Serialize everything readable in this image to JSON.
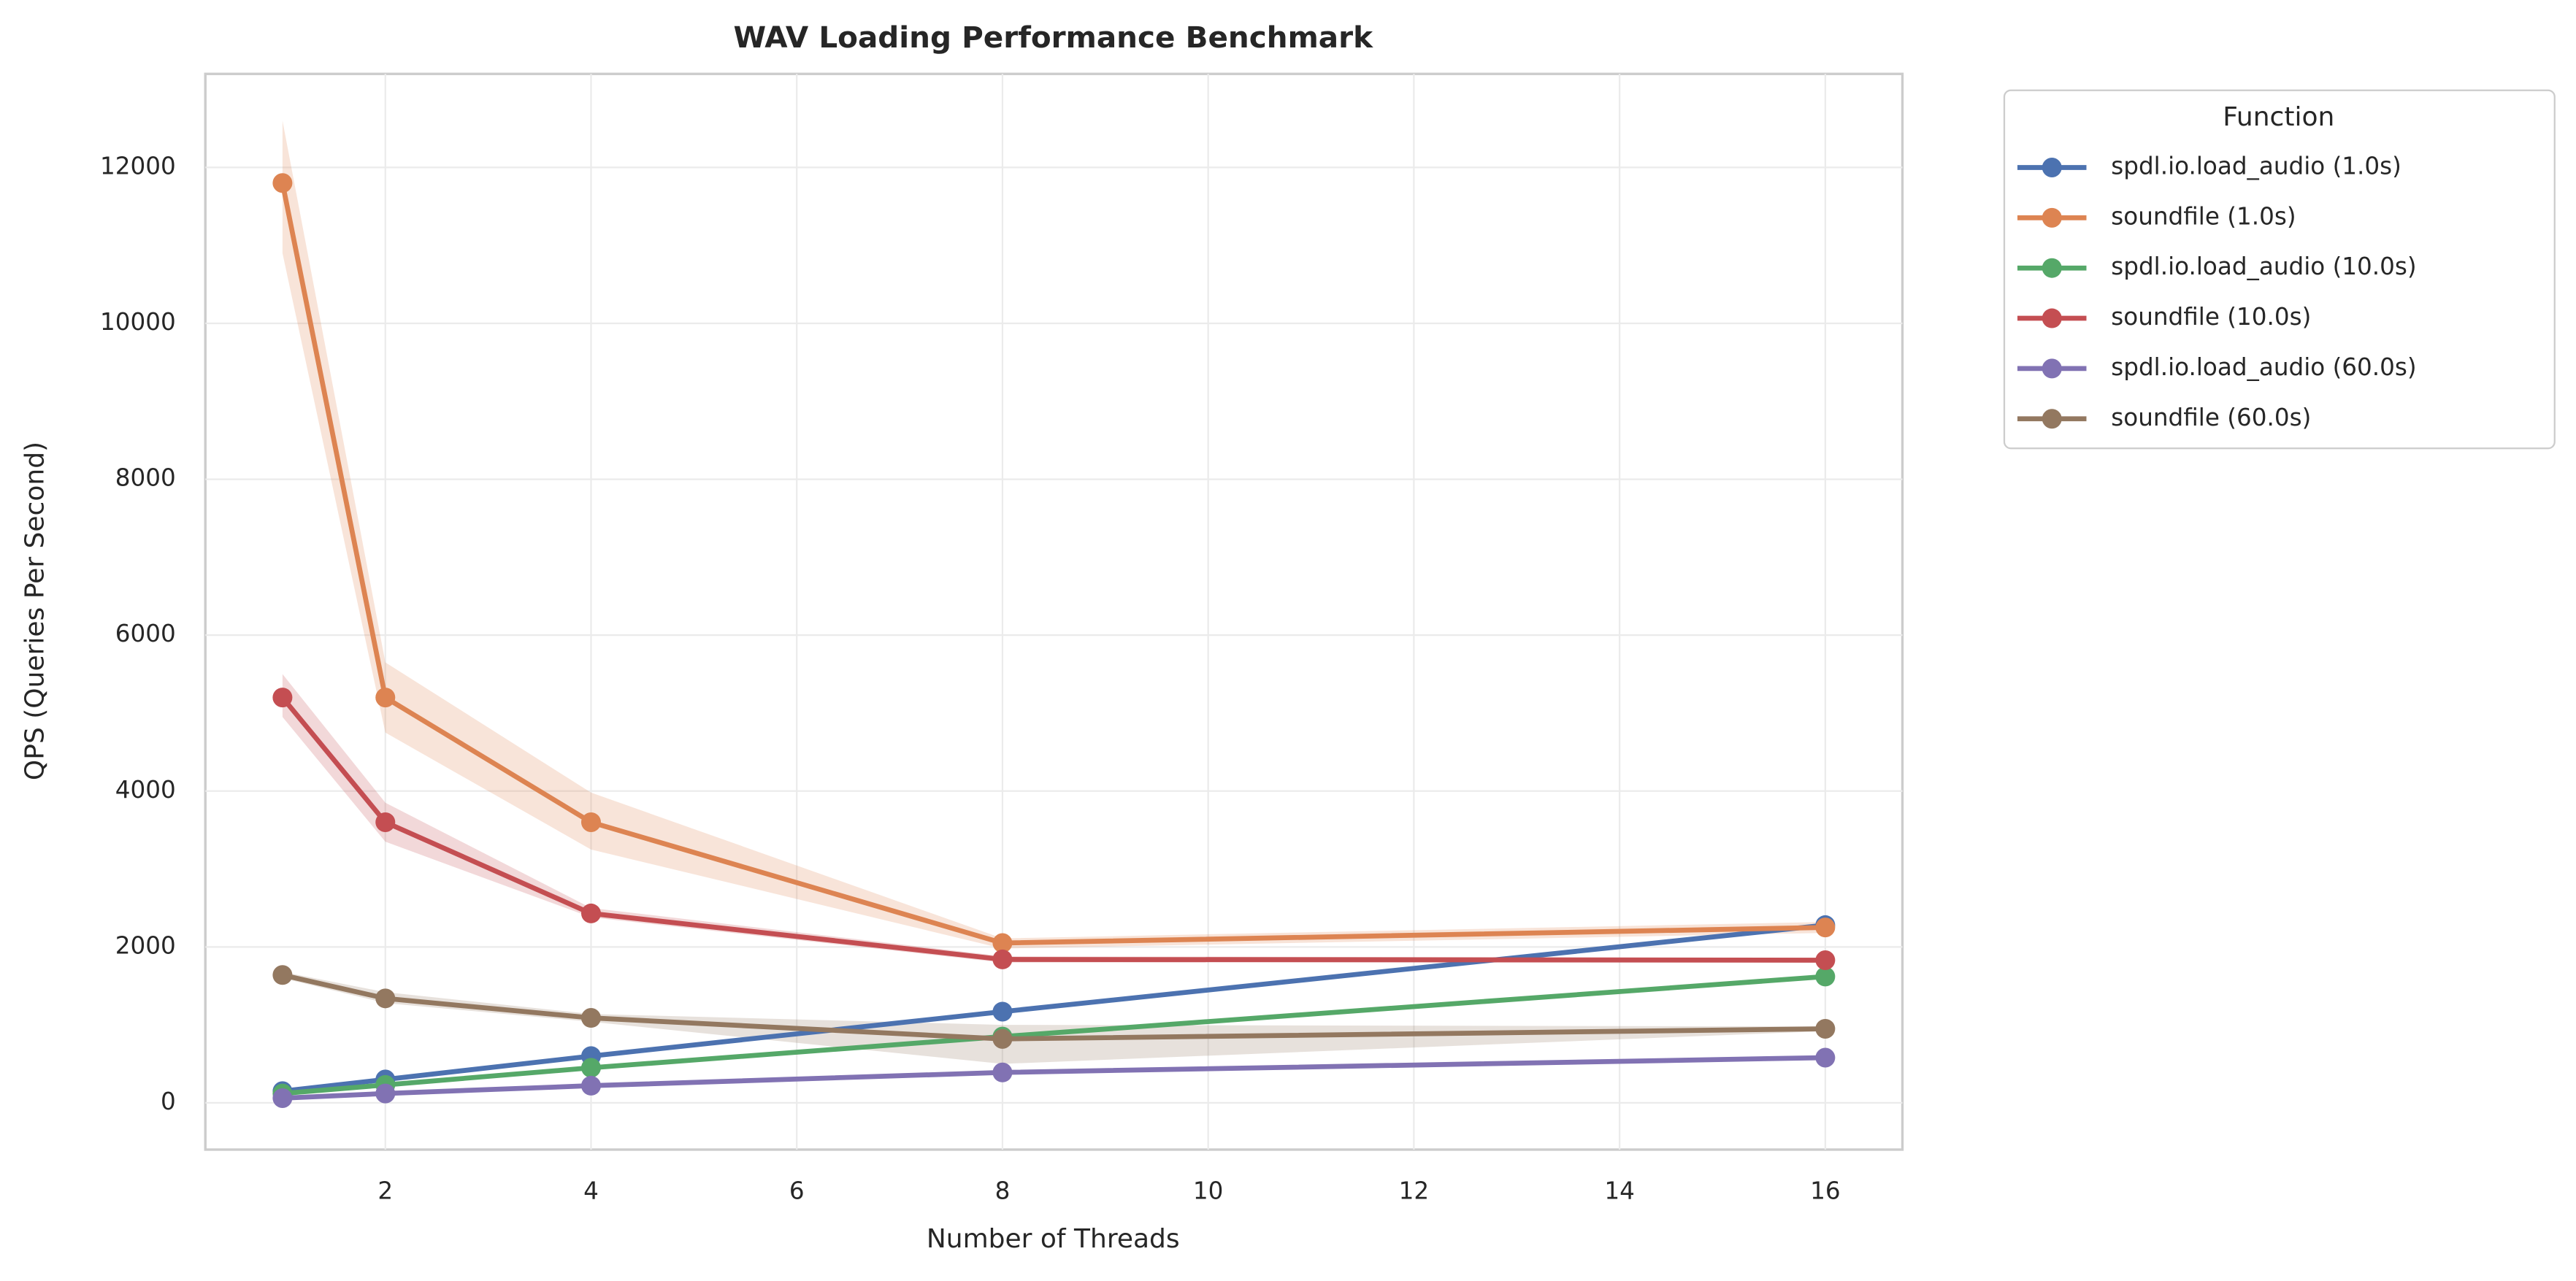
{
  "chart_data": {
    "type": "line",
    "title": "WAV Loading Performance Benchmark",
    "x_label": "Number of Threads",
    "y_label": "QPS (Queries Per Second)",
    "x": [
      1,
      2,
      4,
      8,
      16
    ],
    "xlim": [
      0.25,
      16.75
    ],
    "xticks": [
      2,
      4,
      6,
      8,
      10,
      12,
      14,
      16
    ],
    "ylim": [
      -600,
      13200
    ],
    "yticks": [
      0,
      2000,
      4000,
      6000,
      8000,
      10000,
      12000
    ],
    "grid": true,
    "legend_title": "Function",
    "legend_position": "outside-upper-right",
    "series": [
      {
        "name": "spdl.io.load_audio (1.0s)",
        "color": "#4c72b0",
        "values": [
          150,
          300,
          600,
          1170,
          2280
        ]
      },
      {
        "name": "soundfile (1.0s)",
        "color": "#dd8452",
        "values": [
          11800,
          5200,
          3600,
          2050,
          2250
        ],
        "ci_low": [
          10900,
          4750,
          3250,
          1980,
          2180
        ],
        "ci_high": [
          12600,
          5650,
          3980,
          2110,
          2320
        ]
      },
      {
        "name": "spdl.io.load_audio (10.0s)",
        "color": "#55a868",
        "values": [
          120,
          230,
          450,
          850,
          1620
        ]
      },
      {
        "name": "soundfile (10.0s)",
        "color": "#c44e52",
        "values": [
          5200,
          3600,
          2430,
          1840,
          1830
        ],
        "ci_low": [
          4950,
          3350,
          2380,
          1800,
          1800
        ],
        "ci_high": [
          5500,
          3850,
          2500,
          1880,
          1860
        ]
      },
      {
        "name": "spdl.io.load_audio (60.0s)",
        "color": "#8172b3",
        "values": [
          60,
          120,
          220,
          390,
          580
        ]
      },
      {
        "name": "soundfile (60.0s)",
        "color": "#937860",
        "values": [
          1640,
          1340,
          1090,
          820,
          950
        ],
        "ci_low": [
          1600,
          1280,
          1040,
          500,
          920
        ],
        "ci_high": [
          1680,
          1420,
          1140,
          1000,
          980
        ]
      }
    ]
  }
}
